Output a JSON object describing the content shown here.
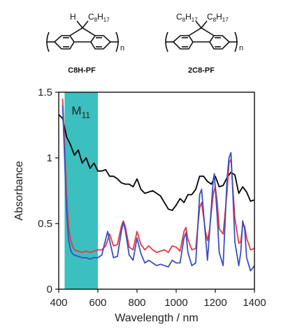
{
  "structures": {
    "left": {
      "label": "C8H-PF",
      "substituent_h": "H",
      "substituent_chain": "C",
      "chain_sub_8": "8",
      "chain_h": "H",
      "chain_sub_17": "17",
      "repeat_n": "n"
    },
    "right": {
      "label": "2C8-PF",
      "chain1": "C",
      "chain1_sub8": "8",
      "chain1_h": "H",
      "chain1_sub17": "17",
      "chain2": "C",
      "chain2_sub8": "8",
      "chain2_h": "H",
      "chain2_sub17": "17",
      "repeat_n": "n"
    }
  },
  "chart_data": {
    "type": "line",
    "xlabel": "Wavelength / nm",
    "ylabel": "Absorbance",
    "xlim": [
      400,
      1400
    ],
    "ylim": [
      0,
      1.5
    ],
    "xticks": [
      400,
      600,
      800,
      1000,
      1200,
      1400
    ],
    "yticks": [
      0,
      0.5,
      1,
      1.5
    ],
    "ytick_labels": [
      "0",
      "0.5",
      "1",
      "1.5"
    ],
    "grid": false,
    "annotations": [
      {
        "text": "M",
        "subscript": "11",
        "region": [
          430,
          600
        ],
        "color": "#3bbfbf"
      }
    ],
    "series": [
      {
        "color": "#000000",
        "x": [
          400,
          420,
          440,
          460,
          480,
          500,
          520,
          540,
          560,
          580,
          600,
          620,
          640,
          660,
          680,
          700,
          720,
          740,
          760,
          780,
          800,
          820,
          840,
          860,
          880,
          900,
          920,
          940,
          960,
          980,
          1000,
          1020,
          1040,
          1060,
          1080,
          1100,
          1120,
          1140,
          1160,
          1180,
          1200,
          1220,
          1240,
          1260,
          1280,
          1300,
          1320,
          1340,
          1360,
          1380,
          1400
        ],
        "y": [
          1.33,
          1.3,
          1.16,
          1.1,
          1.02,
          1.06,
          0.96,
          1.0,
          0.92,
          0.96,
          0.9,
          0.9,
          0.91,
          0.86,
          0.86,
          0.84,
          0.81,
          0.8,
          0.8,
          0.78,
          0.84,
          0.76,
          0.73,
          0.74,
          0.75,
          0.73,
          0.71,
          0.66,
          0.61,
          0.6,
          0.64,
          0.69,
          0.66,
          0.72,
          0.72,
          0.76,
          0.86,
          0.86,
          0.82,
          0.8,
          0.86,
          0.78,
          0.79,
          0.85,
          0.89,
          0.87,
          0.73,
          0.78,
          0.74,
          0.67,
          0.68
        ]
      },
      {
        "color": "#e8383f",
        "x": [
          420,
          430,
          440,
          450,
          460,
          470,
          480,
          500,
          520,
          540,
          560,
          580,
          600,
          620,
          640,
          660,
          680,
          700,
          720,
          730,
          740,
          760,
          780,
          800,
          820,
          840,
          860,
          880,
          900,
          920,
          940,
          960,
          980,
          1000,
          1020,
          1040,
          1050,
          1060,
          1080,
          1100,
          1120,
          1130,
          1150,
          1160,
          1170,
          1190,
          1200,
          1210,
          1220,
          1240,
          1260,
          1270,
          1280,
          1290,
          1300,
          1320,
          1330,
          1340,
          1350,
          1360,
          1380,
          1400
        ],
        "y": [
          1.45,
          1.1,
          0.72,
          0.48,
          0.38,
          0.33,
          0.3,
          0.29,
          0.28,
          0.29,
          0.28,
          0.29,
          0.3,
          0.3,
          0.33,
          0.42,
          0.33,
          0.34,
          0.48,
          0.52,
          0.48,
          0.32,
          0.3,
          0.44,
          0.34,
          0.3,
          0.33,
          0.3,
          0.28,
          0.29,
          0.3,
          0.28,
          0.33,
          0.32,
          0.29,
          0.44,
          0.47,
          0.38,
          0.3,
          0.31,
          0.62,
          0.66,
          0.44,
          0.37,
          0.45,
          0.73,
          0.78,
          0.66,
          0.46,
          0.42,
          0.74,
          0.96,
          0.99,
          0.76,
          0.54,
          0.35,
          0.36,
          0.49,
          0.48,
          0.39,
          0.3,
          0.31
        ]
      },
      {
        "color": "#3b4fbf",
        "x": [
          420,
          430,
          440,
          450,
          460,
          470,
          480,
          500,
          520,
          540,
          560,
          580,
          600,
          620,
          640,
          650,
          660,
          680,
          700,
          720,
          730,
          740,
          760,
          780,
          800,
          820,
          840,
          860,
          880,
          900,
          920,
          940,
          960,
          980,
          1000,
          1020,
          1040,
          1050,
          1060,
          1080,
          1100,
          1120,
          1130,
          1150,
          1160,
          1170,
          1190,
          1195,
          1210,
          1220,
          1240,
          1260,
          1270,
          1280,
          1290,
          1300,
          1320,
          1330,
          1340,
          1350,
          1360,
          1380,
          1400
        ],
        "y": [
          1.4,
          1.0,
          0.6,
          0.38,
          0.3,
          0.27,
          0.26,
          0.25,
          0.24,
          0.24,
          0.23,
          0.24,
          0.24,
          0.26,
          0.38,
          0.44,
          0.37,
          0.24,
          0.25,
          0.44,
          0.51,
          0.45,
          0.26,
          0.22,
          0.39,
          0.27,
          0.2,
          0.22,
          0.2,
          0.18,
          0.19,
          0.18,
          0.17,
          0.22,
          0.2,
          0.2,
          0.39,
          0.43,
          0.28,
          0.18,
          0.2,
          0.72,
          0.76,
          0.4,
          0.22,
          0.42,
          0.84,
          0.88,
          0.55,
          0.28,
          0.18,
          0.84,
          1.0,
          1.04,
          0.72,
          0.36,
          0.18,
          0.28,
          0.52,
          0.46,
          0.24,
          0.14,
          0.18
        ]
      }
    ]
  }
}
